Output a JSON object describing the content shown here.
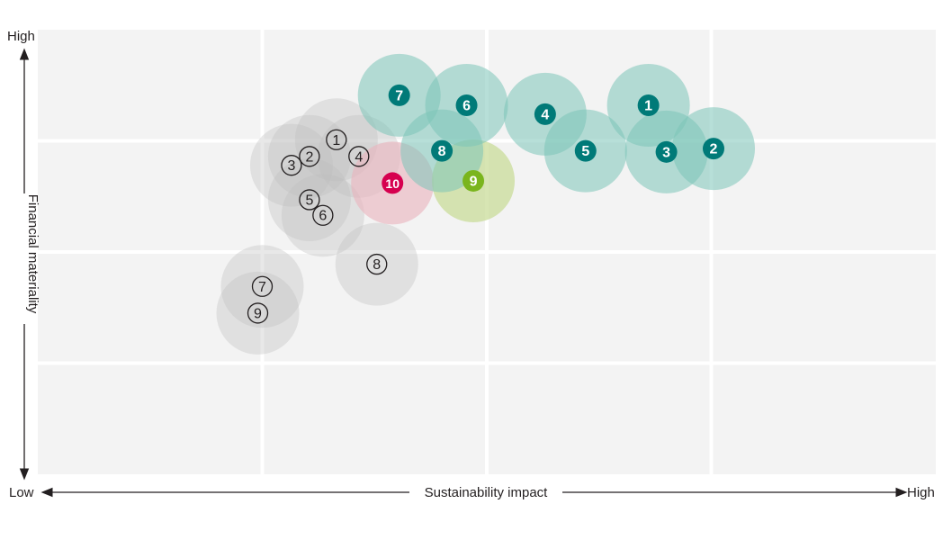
{
  "chart_data": {
    "type": "scatter",
    "title": "",
    "xlabel": "Sustainability impact",
    "ylabel": "Financial materiality",
    "x_low_label": "Low",
    "x_high_label": "High",
    "y_high_label": "High",
    "xlim": [
      0,
      4
    ],
    "ylim": [
      0,
      4
    ],
    "grid": true,
    "colors": {
      "teal": "#007a78",
      "teal_bubble": "#7cc4b8",
      "green": "#7ab51d",
      "green_bubble": "#c9dc9a",
      "pink": "#d6004f",
      "pink_bubble": "#eab3bd",
      "gray_bubble": "#bdbdbd",
      "plot_bg": "#f3f3f3"
    },
    "series": [
      {
        "style": "teal",
        "points": [
          {
            "label": "1",
            "x": 2.72,
            "y": 3.32
          },
          {
            "label": "2",
            "x": 3.01,
            "y": 2.93
          },
          {
            "label": "3",
            "x": 2.8,
            "y": 2.9
          },
          {
            "label": "4",
            "x": 2.26,
            "y": 3.24
          },
          {
            "label": "5",
            "x": 2.44,
            "y": 2.91
          },
          {
            "label": "6",
            "x": 1.91,
            "y": 3.32
          },
          {
            "label": "7",
            "x": 1.61,
            "y": 3.41
          },
          {
            "label": "8",
            "x": 1.8,
            "y": 2.91
          }
        ]
      },
      {
        "style": "green",
        "points": [
          {
            "label": "9",
            "x": 1.94,
            "y": 2.64
          }
        ]
      },
      {
        "style": "pink",
        "points": [
          {
            "label": "10",
            "x": 1.58,
            "y": 2.62
          }
        ]
      },
      {
        "style": "gray",
        "points": [
          {
            "label": "1",
            "x": 1.33,
            "y": 3.01
          },
          {
            "label": "2",
            "x": 1.21,
            "y": 2.86
          },
          {
            "label": "3",
            "x": 1.13,
            "y": 2.78
          },
          {
            "label": "4",
            "x": 1.43,
            "y": 2.86
          },
          {
            "label": "5",
            "x": 1.21,
            "y": 2.47
          },
          {
            "label": "6",
            "x": 1.27,
            "y": 2.33
          },
          {
            "label": "7",
            "x": 1.0,
            "y": 1.69
          },
          {
            "label": "8",
            "x": 1.51,
            "y": 1.89
          },
          {
            "label": "9",
            "x": 0.98,
            "y": 1.45
          }
        ]
      }
    ]
  }
}
